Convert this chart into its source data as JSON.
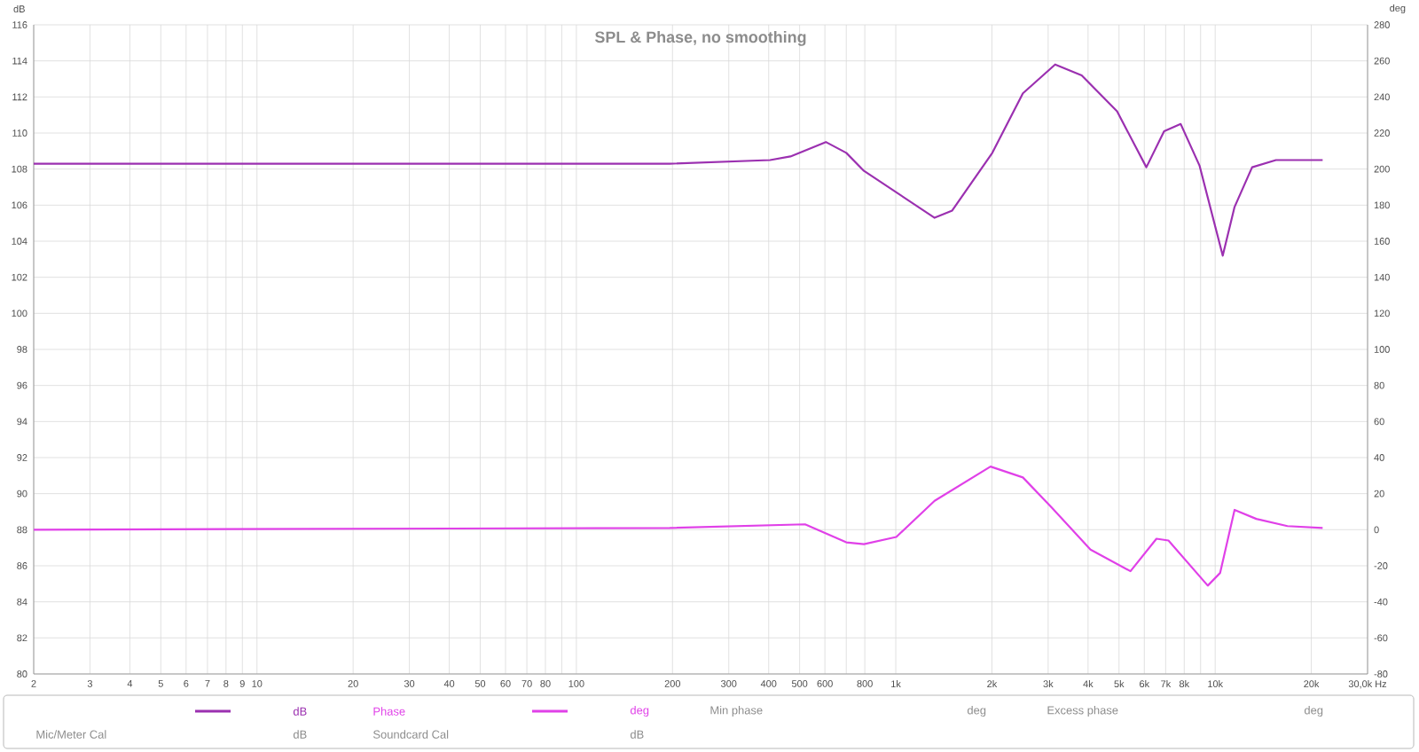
{
  "chart_data": {
    "type": "line",
    "title": "SPL & Phase, no smoothing",
    "ylabel": "dB",
    "y2label": "deg",
    "log": "x",
    "grid": true,
    "legend": "bottom",
    "xlim": [
      2,
      30000
    ],
    "ylim": [
      80,
      116
    ],
    "y2lim": [
      -80,
      280
    ],
    "xticks": [
      2,
      3,
      4,
      5,
      6,
      7,
      8,
      9,
      10,
      20,
      30,
      40,
      50,
      60,
      70,
      80,
      {
        "value": 90,
        "label": null
      },
      100,
      200,
      300,
      400,
      500,
      600,
      {
        "value": 700,
        "label": null
      },
      800,
      {
        "value": 1000,
        "label": "1k"
      },
      {
        "value": 2000,
        "label": "2k"
      },
      {
        "value": 3000,
        "label": "3k"
      },
      {
        "value": 4000,
        "label": "4k"
      },
      {
        "value": 5000,
        "label": "5k"
      },
      {
        "value": 6000,
        "label": "6k"
      },
      {
        "value": 7000,
        "label": "7k"
      },
      {
        "value": 8000,
        "label": "8k"
      },
      {
        "value": 9000,
        "label": null
      },
      {
        "value": 10000,
        "label": "10k"
      },
      {
        "value": 20000,
        "label": "20k"
      },
      {
        "value": 30000,
        "label": "30,0k Hz"
      }
    ],
    "yticks": [
      80,
      82,
      84,
      86,
      88,
      90,
      92,
      94,
      96,
      98,
      100,
      102,
      104,
      106,
      108,
      110,
      112,
      114,
      116
    ],
    "y2ticks": [
      -80,
      -60,
      -40,
      -20,
      0,
      20,
      40,
      60,
      80,
      100,
      120,
      140,
      160,
      180,
      200,
      220,
      240,
      260,
      280
    ],
    "series": [
      {
        "color": "#9b30b0",
        "x": [
          2,
          196,
          404,
          468,
          604,
          700,
          795,
          1323,
          1502,
          2006,
          2500,
          3155,
          3820,
          4930,
          6090,
          6920,
          7800,
          8930,
          10560,
          11500,
          13050,
          15500,
          21700
        ],
        "values": [
          108.3,
          108.3,
          108.5,
          108.7,
          109.5,
          108.9,
          107.9,
          105.3,
          105.7,
          108.9,
          112.2,
          113.8,
          113.2,
          111.2,
          108.1,
          110.1,
          110.5,
          108.2,
          103.2,
          105.9,
          108.1,
          108.5,
          108.5
        ]
      },
      {
        "name": "Phase",
        "color": "#e040e8",
        "axis": "y2",
        "x": [
          2,
          196,
          520,
          700,
          795,
          1004,
          1323,
          1980,
          2500,
          3090,
          4070,
          5430,
          6550,
          7140,
          9480,
          10360,
          11500,
          13450,
          16840,
          21700
        ],
        "values": [
          0,
          1,
          3,
          -7,
          -8,
          -4,
          16,
          35,
          29,
          12,
          -11,
          -23,
          -5,
          -6,
          -31,
          -24,
          11,
          6,
          2,
          1
        ]
      }
    ],
    "annotations": [
      "dB",
      "deg",
      "Min phase",
      "deg",
      "Excess phase",
      "deg",
      "Mic/Meter Cal",
      "dB",
      "Soundcard Cal",
      "dB"
    ]
  }
}
